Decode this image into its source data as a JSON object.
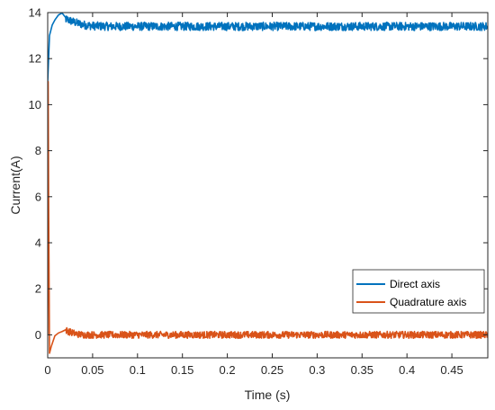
{
  "chart_data": {
    "type": "line",
    "title": "",
    "xlabel": "Time (s)",
    "ylabel": "Current(A)",
    "xlim": [
      0,
      0.49
    ],
    "ylim": [
      -1,
      14
    ],
    "xticks": [
      0,
      0.05,
      0.1,
      0.15,
      0.2,
      0.25,
      0.3,
      0.35,
      0.4,
      0.45
    ],
    "xtick_labels": [
      "0",
      "0.05",
      "0.1",
      "0.15",
      "0.2",
      "0.25",
      "0.3",
      "0.35",
      "0.4",
      "0.45"
    ],
    "yticks": [
      0,
      2,
      4,
      6,
      8,
      10,
      12,
      14
    ],
    "ytick_labels": [
      "0",
      "2",
      "4",
      "6",
      "8",
      "10",
      "12",
      "14"
    ],
    "grid": false,
    "legend_position": "bottom-right",
    "series": [
      {
        "name": "Direct axis",
        "color": "#0072BD",
        "x": [
          0,
          0.002,
          0.005,
          0.008,
          0.012,
          0.016,
          0.02,
          0.025,
          0.03,
          0.035,
          0.04,
          0.05,
          0.07,
          0.1,
          0.15,
          0.2,
          0.25,
          0.3,
          0.35,
          0.4,
          0.45,
          0.49
        ],
        "y": [
          11.0,
          13.0,
          13.4,
          13.75,
          13.85,
          13.8,
          13.72,
          13.65,
          13.58,
          13.52,
          13.47,
          13.42,
          13.4,
          13.4,
          13.4,
          13.4,
          13.4,
          13.4,
          13.4,
          13.4,
          13.4,
          13.4
        ],
        "noise_amplitude": 0.18
      },
      {
        "name": "Quadrature axis",
        "color": "#D95319",
        "x": [
          0,
          0.0005,
          0.001,
          0.002,
          0.004,
          0.008,
          0.012,
          0.016,
          0.02,
          0.025,
          0.03,
          0.035,
          0.04,
          0.05,
          0.07,
          0.1,
          0.15,
          0.2,
          0.25,
          0.3,
          0.35,
          0.4,
          0.45,
          0.49
        ],
        "y": [
          0,
          11.0,
          6.0,
          -0.8,
          -0.5,
          -0.1,
          0.2,
          0.25,
          0.2,
          0.12,
          0.06,
          0.02,
          0.0,
          0.0,
          0.0,
          0.0,
          0.0,
          0.0,
          0.0,
          0.0,
          0.0,
          0.0,
          0.0,
          0.0
        ],
        "noise_amplitude": 0.15
      }
    ]
  }
}
